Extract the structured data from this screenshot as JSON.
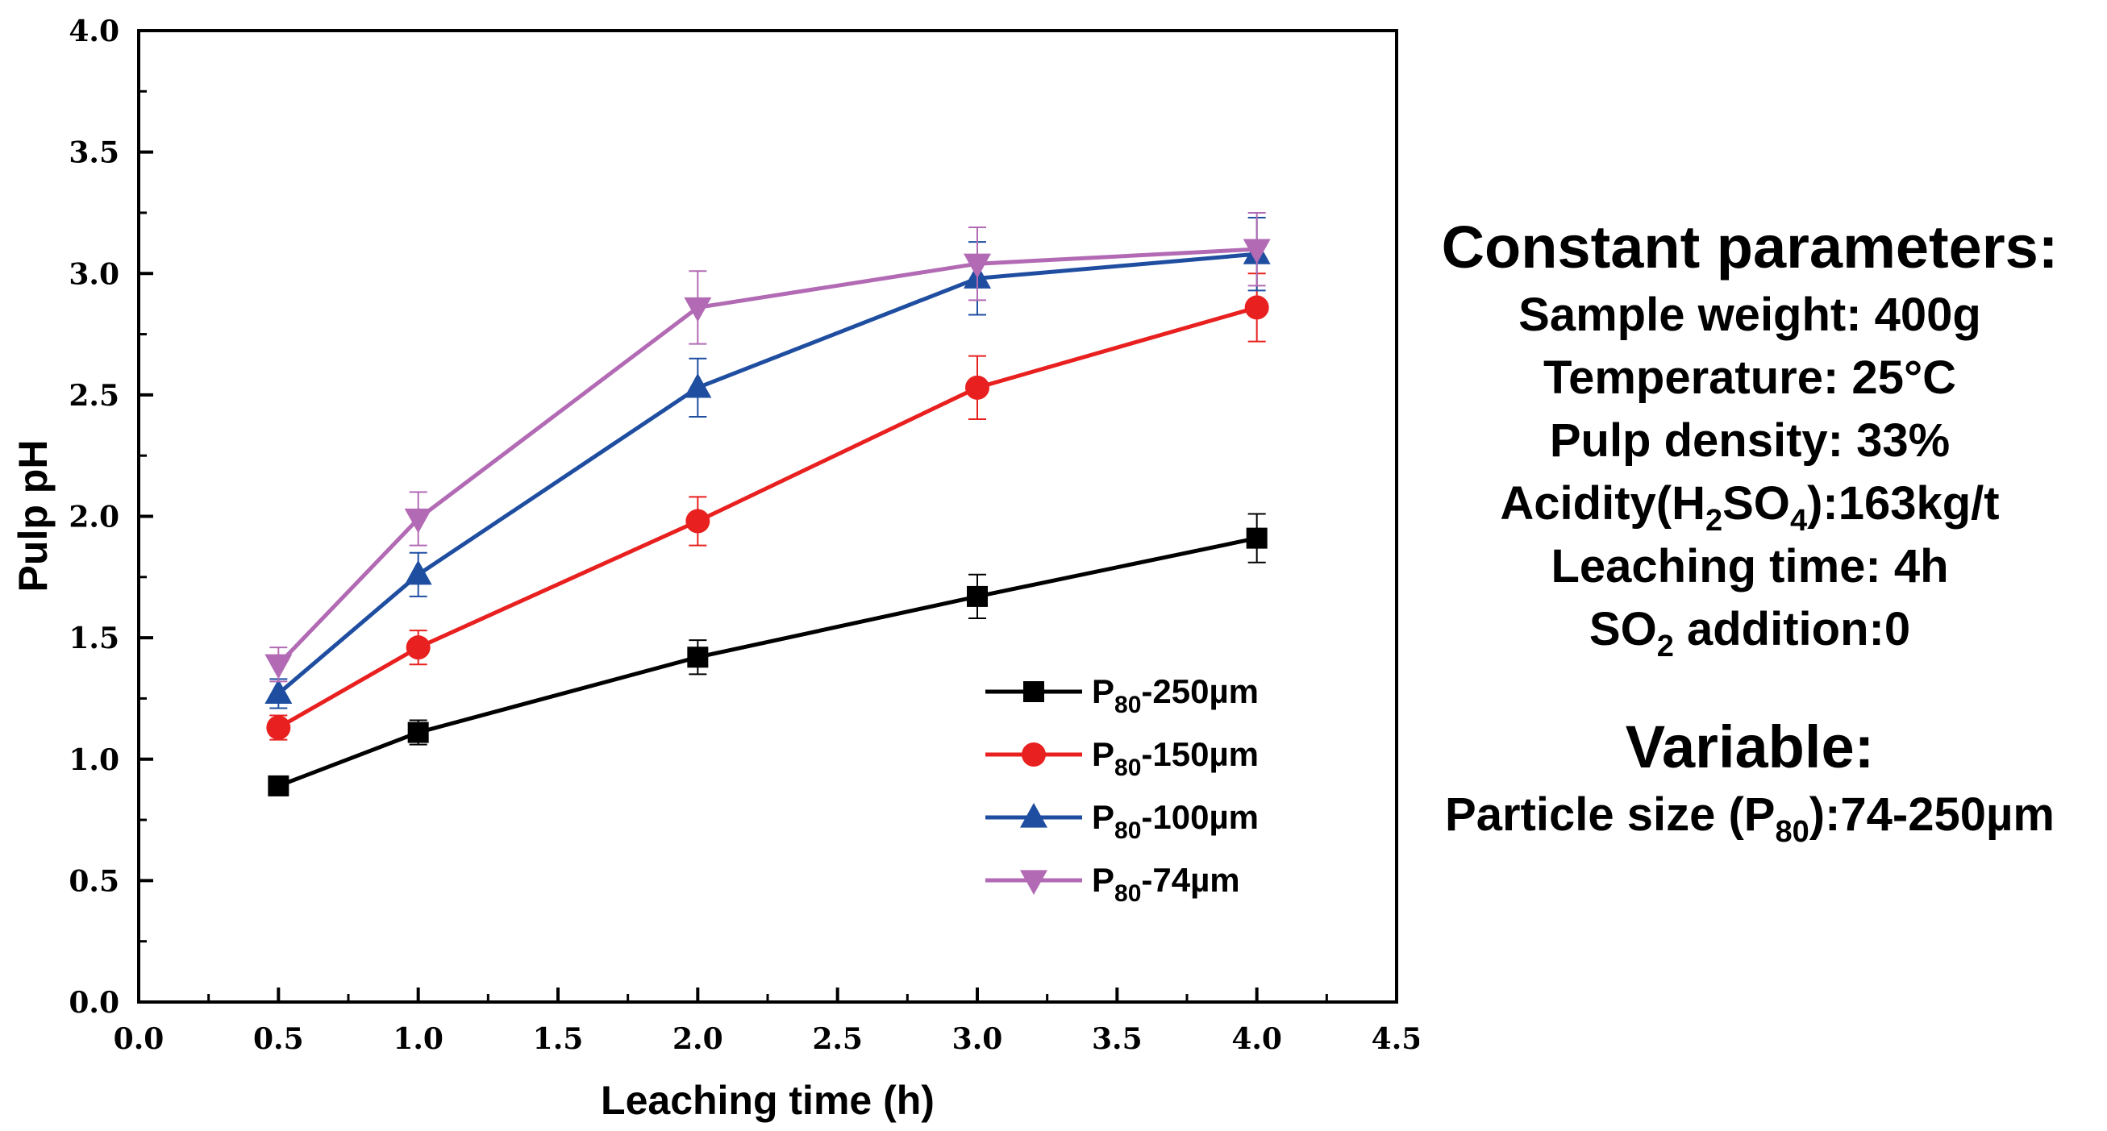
{
  "chart_data": {
    "type": "line",
    "xlabel": "Leaching time (h)",
    "ylabel": "Pulp pH",
    "xlim": [
      0.0,
      4.5
    ],
    "ylim": [
      0.0,
      4.0
    ],
    "x_ticks": [
      "0.0",
      "0.5",
      "1.0",
      "1.5",
      "2.0",
      "2.5",
      "3.0",
      "3.5",
      "4.0",
      "4.5"
    ],
    "y_ticks": [
      "0.0",
      "0.5",
      "1.0",
      "1.5",
      "2.0",
      "2.5",
      "3.0",
      "3.5",
      "4.0"
    ],
    "x": [
      0.5,
      1.0,
      2.0,
      3.0,
      4.0
    ],
    "legend_position": "lower-right",
    "series": [
      {
        "name": "P80-250µm",
        "label_main": "P",
        "label_sub": "80",
        "label_rest": "-250µm",
        "color": "#000000",
        "marker": "square",
        "values": [
          0.89,
          1.11,
          1.42,
          1.67,
          1.91
        ],
        "errors": [
          0.03,
          0.05,
          0.07,
          0.09,
          0.1
        ]
      },
      {
        "name": "P80-150µm",
        "label_main": "P",
        "label_sub": "80",
        "label_rest": "-150µm",
        "color": "#e8201f",
        "marker": "circle",
        "values": [
          1.13,
          1.46,
          1.98,
          2.53,
          2.86
        ],
        "errors": [
          0.05,
          0.07,
          0.1,
          0.13,
          0.14
        ]
      },
      {
        "name": "P80-100µm",
        "label_main": "P",
        "label_sub": "80",
        "label_rest": "-100µm",
        "color": "#1f4ea1",
        "marker": "triangle-up",
        "values": [
          1.27,
          1.76,
          2.53,
          2.98,
          3.08
        ],
        "errors": [
          0.06,
          0.09,
          0.12,
          0.15,
          0.15
        ]
      },
      {
        "name": "P80-74µm",
        "label_main": "P",
        "label_sub": "80",
        "label_rest": "-74µm",
        "color": "#b26ab4",
        "marker": "triangle-down",
        "values": [
          1.39,
          1.99,
          2.86,
          3.04,
          3.1
        ],
        "errors": [
          0.07,
          0.11,
          0.15,
          0.15,
          0.15
        ]
      }
    ]
  },
  "annotation": {
    "constant_title": "Constant parameters:",
    "sample_weight": "Sample weight: 400g",
    "temperature": "Temperature: 25°C",
    "pulp_density": "Pulp density: 33%",
    "acidity_prefix": "Acidity(H",
    "acidity_sub1": "2",
    "acidity_mid": "SO",
    "acidity_sub2": "4",
    "acidity_suffix": "):163kg/t",
    "leaching_time": "Leaching time: 4h",
    "so2_main": "SO",
    "so2_sub": "2",
    "so2_rest": " addition:0",
    "variable_title": "Variable:",
    "particle_prefix": "Particle size (P",
    "particle_sub": "80",
    "particle_suffix": "):74-250µm"
  }
}
